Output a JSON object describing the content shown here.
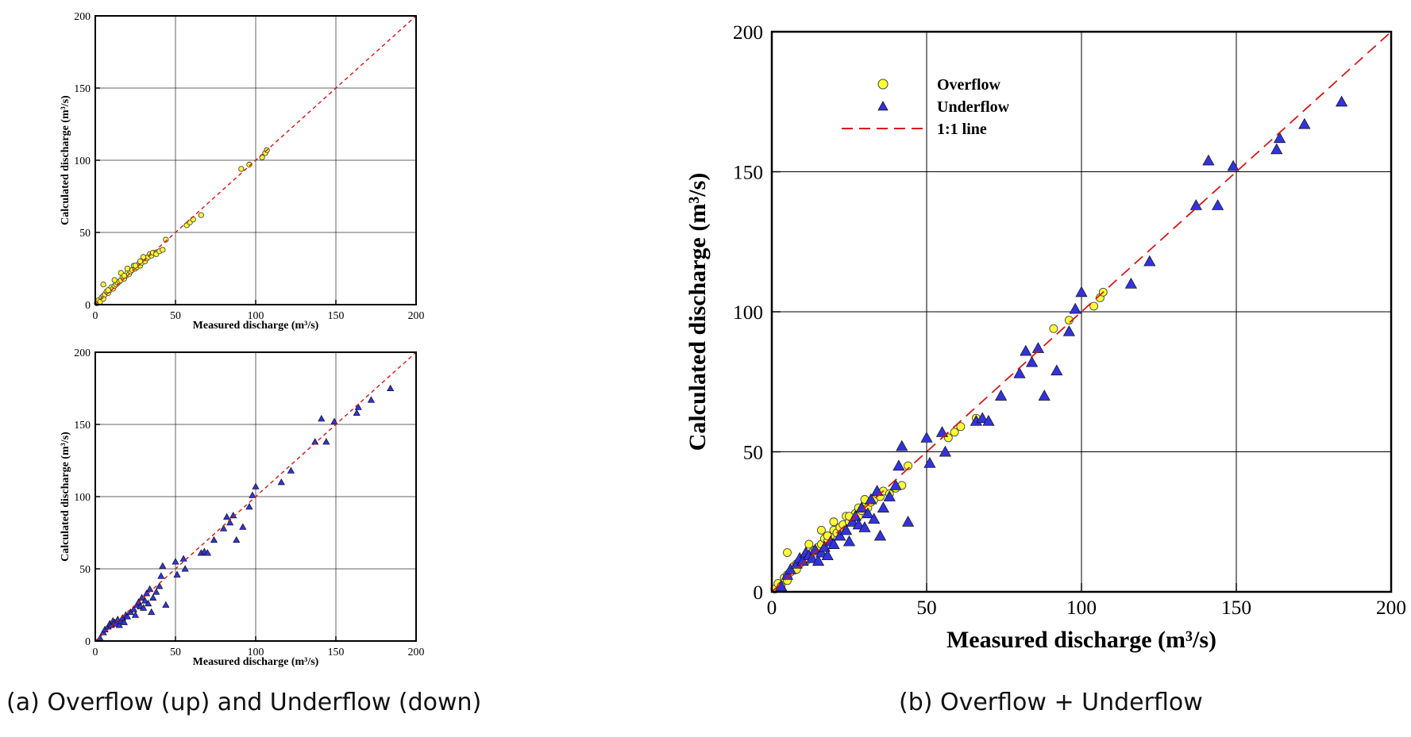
{
  "captions": {
    "a": "(a) Overflow (up) and Underflow (down)",
    "b": "(b) Overflow + Underflow"
  },
  "colors": {
    "overflow_fill": "#ffff33",
    "underflow_fill": "#3333dd",
    "line": "#dd1111",
    "grid": "#000000"
  },
  "chart_data": [
    {
      "id": "overflow_small",
      "type": "scatter",
      "xlabel": "Measured discharge (m³/s)",
      "ylabel": "Calculated discharge (m³/s)",
      "xlim": [
        0,
        200
      ],
      "ylim": [
        0,
        200
      ],
      "xticks": [
        "0",
        "50",
        "100",
        "150",
        "200"
      ],
      "yticks": [
        "0",
        "50",
        "100",
        "150",
        "200"
      ],
      "grid": true,
      "series": [
        {
          "name": "Overflow",
          "marker": "circle",
          "x": [
            1,
            2,
            3,
            4,
            5,
            5,
            6,
            7,
            8,
            9,
            10,
            11,
            12,
            13,
            14,
            15,
            16,
            17,
            18,
            19,
            20,
            21,
            22,
            23,
            24,
            25,
            26,
            27,
            28,
            29,
            30,
            31,
            32,
            33,
            34,
            35,
            36,
            38,
            40,
            42,
            44,
            5,
            8,
            12,
            16,
            18,
            20,
            25,
            28,
            30,
            57,
            59,
            61,
            66,
            91,
            96,
            104,
            106,
            107
          ],
          "y": [
            1,
            3,
            2,
            5,
            6,
            14,
            7,
            9,
            8,
            10,
            12,
            11,
            13,
            14,
            15,
            16,
            17,
            19,
            18,
            20,
            22,
            21,
            23,
            24,
            27,
            25,
            26,
            28,
            27,
            29,
            31,
            30,
            32,
            33,
            35,
            34,
            36,
            35,
            37,
            38,
            45,
            4,
            10,
            17,
            22,
            20,
            25,
            27,
            30,
            33,
            55,
            57,
            59,
            62,
            94,
            97,
            102,
            105,
            107
          ]
        },
        {
          "name": "1:1 line",
          "marker": "dashed",
          "x": [
            0,
            200
          ],
          "y": [
            0,
            200
          ]
        }
      ]
    },
    {
      "id": "underflow_small",
      "type": "scatter",
      "xlabel": "Measured discharge (m³/s)",
      "ylabel": "Calculated discharge (m³/s)",
      "xlim": [
        0,
        200
      ],
      "ylim": [
        0,
        200
      ],
      "xticks": [
        "0",
        "50",
        "100",
        "150",
        "200"
      ],
      "yticks": [
        "0",
        "50",
        "100",
        "150",
        "200"
      ],
      "grid": true,
      "series": [
        {
          "name": "Underflow",
          "marker": "triangle",
          "x": [
            3,
            5,
            6,
            8,
            9,
            10,
            11,
            12,
            13,
            14,
            15,
            16,
            17,
            18,
            19,
            20,
            22,
            24,
            25,
            26,
            27,
            28,
            29,
            30,
            31,
            32,
            33,
            34,
            35,
            36,
            38,
            40,
            41,
            42,
            44,
            50,
            51,
            55,
            56,
            66,
            68,
            70,
            74,
            80,
            82,
            84,
            86,
            88,
            92,
            96,
            98,
            100,
            116,
            122,
            137,
            141,
            144,
            149,
            163,
            164,
            172,
            184
          ],
          "y": [
            2,
            6,
            8,
            10,
            12,
            11,
            14,
            13,
            12,
            15,
            11,
            14,
            16,
            13,
            18,
            17,
            20,
            22,
            18,
            25,
            27,
            24,
            30,
            23,
            28,
            33,
            26,
            36,
            20,
            30,
            34,
            38,
            45,
            52,
            25,
            55,
            46,
            57,
            50,
            61,
            62,
            61,
            70,
            78,
            86,
            82,
            87,
            70,
            79,
            93,
            101,
            107,
            110,
            118,
            138,
            154,
            138,
            152,
            158,
            162,
            167,
            175
          ]
        },
        {
          "name": "1:1 line",
          "marker": "dashed",
          "x": [
            0,
            200
          ],
          "y": [
            0,
            200
          ]
        }
      ]
    },
    {
      "id": "combined_large",
      "type": "scatter",
      "xlabel": "Measured discharge (m³/s)",
      "ylabel": "Calculated discharge (m³/s)",
      "xlim": [
        0,
        200
      ],
      "ylim": [
        0,
        200
      ],
      "xticks": [
        "0",
        "50",
        "100",
        "150",
        "200"
      ],
      "yticks": [
        "0",
        "50",
        "100",
        "150",
        "200"
      ],
      "grid": true,
      "legend": {
        "position": "top-left",
        "entries": [
          "Overflow",
          "Underflow",
          "1:1 line"
        ]
      },
      "series": [
        {
          "name": "Overflow",
          "marker": "circle",
          "x": [
            1,
            2,
            3,
            4,
            5,
            5,
            6,
            7,
            8,
            9,
            10,
            11,
            12,
            13,
            14,
            15,
            16,
            17,
            18,
            19,
            20,
            21,
            22,
            23,
            24,
            25,
            26,
            27,
            28,
            29,
            30,
            31,
            32,
            33,
            34,
            35,
            36,
            38,
            40,
            42,
            44,
            5,
            8,
            12,
            16,
            18,
            20,
            25,
            28,
            30,
            57,
            59,
            61,
            66,
            91,
            96,
            104,
            106,
            107
          ],
          "y": [
            1,
            3,
            2,
            5,
            6,
            14,
            7,
            9,
            8,
            10,
            12,
            11,
            13,
            14,
            15,
            16,
            17,
            19,
            18,
            20,
            22,
            21,
            23,
            24,
            27,
            25,
            26,
            28,
            27,
            29,
            31,
            30,
            32,
            33,
            35,
            34,
            36,
            35,
            37,
            38,
            45,
            4,
            10,
            17,
            22,
            20,
            25,
            27,
            30,
            33,
            55,
            57,
            59,
            62,
            94,
            97,
            102,
            105,
            107
          ]
        },
        {
          "name": "Underflow",
          "marker": "triangle",
          "x": [
            3,
            5,
            6,
            8,
            9,
            10,
            11,
            12,
            13,
            14,
            15,
            16,
            17,
            18,
            19,
            20,
            22,
            24,
            25,
            26,
            27,
            28,
            29,
            30,
            31,
            32,
            33,
            34,
            35,
            36,
            38,
            40,
            41,
            42,
            44,
            50,
            51,
            55,
            56,
            66,
            68,
            70,
            74,
            80,
            82,
            84,
            86,
            88,
            92,
            96,
            98,
            100,
            116,
            122,
            137,
            141,
            144,
            149,
            163,
            164,
            172,
            184
          ],
          "y": [
            2,
            6,
            8,
            10,
            12,
            11,
            14,
            13,
            12,
            15,
            11,
            14,
            16,
            13,
            18,
            17,
            20,
            22,
            18,
            25,
            27,
            24,
            30,
            23,
            28,
            33,
            26,
            36,
            20,
            30,
            34,
            38,
            45,
            52,
            25,
            55,
            46,
            57,
            50,
            61,
            62,
            61,
            70,
            78,
            86,
            82,
            87,
            70,
            79,
            93,
            101,
            107,
            110,
            118,
            138,
            154,
            138,
            152,
            158,
            162,
            167,
            175
          ]
        },
        {
          "name": "1:1 line",
          "marker": "dashed",
          "x": [
            0,
            200
          ],
          "y": [
            0,
            200
          ]
        }
      ]
    }
  ]
}
